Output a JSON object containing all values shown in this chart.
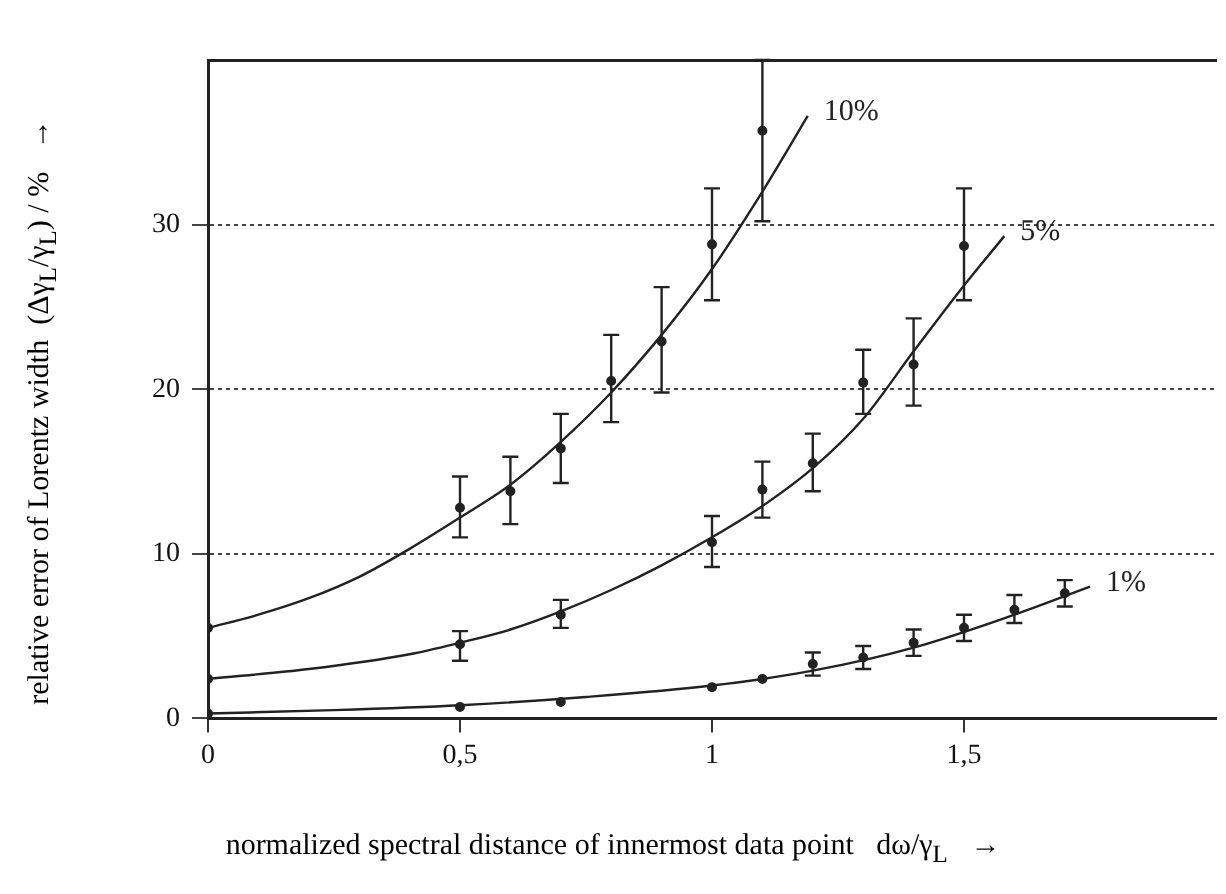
{
  "chart_data": {
    "type": "scatter",
    "xlabel": "normalized spectral distance of innermost data point   dω/γ$_{L}$   →",
    "ylabel": "relative error of Lorentz width  (Δγ$_{L}$/γ$_{L}$) / %   →",
    "xlim": [
      0,
      2
    ],
    "ylim": [
      0,
      40
    ],
    "xticks": [
      0,
      {
        "value": 0.5,
        "label": "0,5"
      },
      1,
      {
        "value": 1.5,
        "label": "1,5"
      }
    ],
    "yticks": [
      0,
      10,
      20,
      30
    ],
    "grid": "y",
    "legend": false,
    "series": [
      {
        "type": "line",
        "name": "10%",
        "color": "#222222",
        "marker": "none",
        "line_style": "solid",
        "x": [
          0,
          0.1,
          0.2,
          0.3,
          0.4,
          0.5,
          0.6,
          0.7,
          0.8,
          0.9,
          1.0,
          1.1,
          1.19
        ],
        "values": [
          5.5,
          6.3,
          7.3,
          8.6,
          10.3,
          12.2,
          14.2,
          16.8,
          19.8,
          23.3,
          27.3,
          32.0,
          36.6
        ]
      },
      {
        "type": "scatter",
        "color": "#222222",
        "marker": "circle",
        "x": [
          0,
          0.5,
          0.6,
          0.7,
          0.8,
          0.9,
          1.0,
          1.1
        ],
        "values": [
          5.5,
          12.8,
          13.8,
          16.4,
          20.5,
          22.9,
          28.8,
          35.7
        ],
        "errors": [
          null,
          [
            11.0,
            14.7
          ],
          [
            11.8,
            15.9
          ],
          [
            14.3,
            18.5
          ],
          [
            18.0,
            23.3
          ],
          [
            19.8,
            26.2
          ],
          [
            25.4,
            32.2
          ],
          [
            30.2,
            40
          ]
        ]
      },
      {
        "type": "line",
        "name": "5%",
        "color": "#222222",
        "marker": "none",
        "line_style": "solid",
        "x": [
          0,
          0.2,
          0.4,
          0.5,
          0.6,
          0.7,
          0.8,
          0.9,
          1.0,
          1.1,
          1.2,
          1.3,
          1.4,
          1.5,
          1.58
        ],
        "values": [
          2.4,
          3.0,
          3.9,
          4.6,
          5.4,
          6.5,
          7.8,
          9.3,
          11.0,
          12.9,
          15.2,
          18.2,
          22.3,
          26.3,
          29.3
        ]
      },
      {
        "type": "scatter",
        "color": "#222222",
        "marker": "circle",
        "x": [
          0,
          0.5,
          0.7,
          1.0,
          1.1,
          1.2,
          1.3,
          1.4,
          1.5
        ],
        "values": [
          2.4,
          4.5,
          6.3,
          10.7,
          13.9,
          15.5,
          20.4,
          21.5,
          28.7
        ],
        "errors": [
          null,
          [
            3.5,
            5.3
          ],
          [
            5.5,
            7.2
          ],
          [
            9.2,
            12.3
          ],
          [
            12.2,
            15.6
          ],
          [
            13.8,
            17.3
          ],
          [
            18.5,
            22.4
          ],
          [
            19.0,
            24.3
          ],
          [
            25.4,
            32.2
          ]
        ]
      },
      {
        "type": "line",
        "name": "1%",
        "color": "#222222",
        "marker": "none",
        "line_style": "solid",
        "x": [
          0,
          0.25,
          0.5,
          0.75,
          1.0,
          1.2,
          1.4,
          1.6,
          1.75
        ],
        "values": [
          0.3,
          0.5,
          0.8,
          1.3,
          2.0,
          2.9,
          4.3,
          6.3,
          8.0
        ]
      },
      {
        "type": "scatter",
        "color": "#222222",
        "marker": "circle",
        "x": [
          0,
          0.5,
          0.7,
          1.0,
          1.1,
          1.2,
          1.3,
          1.4,
          1.5,
          1.6,
          1.7
        ],
        "values": [
          0.3,
          0.7,
          1.0,
          1.9,
          2.4,
          3.3,
          3.7,
          4.6,
          5.5,
          6.6,
          7.6
        ],
        "errors": [
          null,
          null,
          null,
          null,
          null,
          [
            2.6,
            4.0
          ],
          [
            3.0,
            4.4
          ],
          [
            3.8,
            5.4
          ],
          [
            4.7,
            6.3
          ],
          [
            5.8,
            7.5
          ],
          [
            6.8,
            8.4
          ]
        ]
      }
    ]
  }
}
